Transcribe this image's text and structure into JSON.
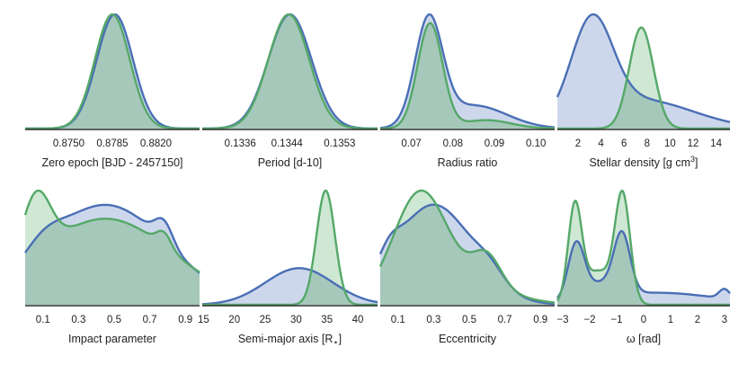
{
  "colors": {
    "blue_line": "#4a6fb5",
    "blue_fill": "#cdd7ec",
    "green_line": "#55a868",
    "green_fill": "#cfe8d4",
    "overlap_fill": "#a6c8bb"
  },
  "legend": "none",
  "chart_data": [
    {
      "type": "area",
      "id": "zero-epoch",
      "xlabel": "Zero epoch [BJD - 2457150]",
      "xlim": [
        0.8715,
        0.8855
      ],
      "ticks": [
        0.875,
        0.8785,
        0.882
      ],
      "tick_labels": [
        "0.8750",
        "0.8785",
        "0.8820"
      ],
      "series": [
        {
          "name": "blue",
          "dist": {
            "type": "gauss",
            "c": 0.8787,
            "w": 0.00145
          }
        },
        {
          "name": "green",
          "dist": {
            "type": "gauss",
            "c": 0.8785,
            "w": 0.0014
          }
        }
      ]
    },
    {
      "type": "area",
      "id": "period",
      "xlabel": "Period [d-10]",
      "xlim": [
        0.13295,
        0.13595
      ],
      "ticks": [
        0.1336,
        0.1344,
        0.1353
      ],
      "tick_labels": [
        "0.1336",
        "0.1344",
        "0.1353"
      ],
      "series": [
        {
          "name": "blue",
          "dist": {
            "type": "gauss",
            "c": 0.13445,
            "w": 0.00037
          }
        },
        {
          "name": "green",
          "dist": {
            "type": "gauss",
            "c": 0.13443,
            "w": 0.00035
          }
        }
      ]
    },
    {
      "type": "area",
      "id": "radius-ratio",
      "xlabel": "Radius ratio",
      "xlim": [
        0.0625,
        0.1045
      ],
      "ticks": [
        0.07,
        0.08,
        0.09,
        0.1
      ],
      "tick_labels": [
        "0.07",
        "0.08",
        "0.09",
        "0.10"
      ],
      "series": [
        {
          "name": "blue",
          "dist": {
            "type": "mix",
            "components": [
              [
                0.0742,
                0.0033,
                1.0
              ],
              [
                0.085,
                0.008,
                0.22
              ]
            ]
          }
        },
        {
          "name": "green",
          "dist": {
            "type": "mix",
            "components": [
              [
                0.0745,
                0.003,
                1.0
              ],
              [
                0.088,
                0.006,
                0.08
              ]
            ]
          }
        }
      ]
    },
    {
      "type": "area",
      "id": "stellar-density",
      "xlabel": "Stellar density [g cm",
      "xlabel_sup": "3",
      "xlabel_close": "]",
      "xlim": [
        0.2,
        15.2
      ],
      "ticks": [
        2,
        4,
        6,
        8,
        10,
        12,
        14
      ],
      "tick_labels": [
        "2",
        "4",
        "6",
        "8",
        "10",
        "12",
        "14"
      ],
      "series": [
        {
          "name": "blue",
          "dist": {
            "type": "mix",
            "components": [
              [
                3.2,
                1.8,
                0.95
              ],
              [
                7.5,
                4.5,
                0.28
              ]
            ]
          }
        },
        {
          "name": "green",
          "dist": {
            "type": "mix",
            "components": [
              [
                7.5,
                1.05,
                1.0
              ]
            ]
          }
        }
      ]
    },
    {
      "type": "area",
      "id": "impact-parameter",
      "xlabel": "Impact parameter",
      "xlim": [
        0.0,
        0.98
      ],
      "ticks": [
        0.1,
        0.3,
        0.5,
        0.7,
        0.9
      ],
      "tick_labels": [
        "0.1",
        "0.3",
        "0.5",
        "0.7",
        "0.9"
      ],
      "series": [
        {
          "name": "blue",
          "dist": {
            "type": "mix",
            "components": [
              [
                0.45,
                0.35,
                0.72
              ],
              [
                0.78,
                0.05,
                0.15
              ],
              [
                0.1,
                0.1,
                0.1
              ]
            ]
          }
        },
        {
          "name": "green",
          "dist": {
            "type": "mix",
            "components": [
              [
                0.45,
                0.38,
                0.62
              ],
              [
                0.06,
                0.08,
                0.45
              ],
              [
                0.78,
                0.04,
                0.1
              ]
            ]
          }
        }
      ]
    },
    {
      "type": "area",
      "id": "semi-major-axis",
      "xlabel": "Semi-major axis [R",
      "xlabel_sub": "⋆",
      "xlabel_close": "]",
      "xlim": [
        14.8,
        43.2
      ],
      "ticks": [
        15,
        20,
        25,
        30,
        35,
        40
      ],
      "tick_labels": [
        "15",
        "20",
        "25",
        "30",
        "35",
        "40"
      ],
      "series": [
        {
          "name": "blue",
          "dist": {
            "type": "mix",
            "components": [
              [
                30.5,
                5.5,
                0.32
              ]
            ]
          }
        },
        {
          "name": "green",
          "dist": {
            "type": "mix",
            "components": [
              [
                34.8,
                1.5,
                1.0
              ]
            ]
          }
        }
      ]
    },
    {
      "type": "area",
      "id": "eccentricity",
      "xlabel": "Eccentricity",
      "xlim": [
        0.0,
        0.98
      ],
      "ticks": [
        0.1,
        0.3,
        0.5,
        0.7,
        0.9
      ],
      "tick_labels": [
        "0.1",
        "0.3",
        "0.5",
        "0.7",
        "0.9"
      ],
      "series": [
        {
          "name": "blue",
          "dist": {
            "type": "mix",
            "components": [
              [
                0.3,
                0.22,
                0.95
              ],
              [
                0.62,
                0.08,
                0.12
              ],
              [
                0.05,
                0.06,
                0.15
              ]
            ]
          }
        },
        {
          "name": "green",
          "dist": {
            "type": "mix",
            "components": [
              [
                0.22,
                0.15,
                0.95
              ],
              [
                0.6,
                0.08,
                0.3
              ],
              [
                0.45,
                0.25,
                0.2
              ]
            ]
          }
        }
      ]
    },
    {
      "type": "area",
      "id": "omega",
      "xlabel": "ω [rad]",
      "xlim": [
        -3.2,
        3.2
      ],
      "ticks": [
        -3,
        -2,
        -1,
        0,
        1,
        2,
        3
      ],
      "tick_labels": [
        "−3",
        "−2",
        "−1",
        "0",
        "1",
        "2",
        "3"
      ],
      "series": [
        {
          "name": "blue",
          "dist": {
            "type": "mix",
            "components": [
              [
                -2.5,
                0.3,
                0.45
              ],
              [
                -0.8,
                0.3,
                0.48
              ],
              [
                -1.6,
                0.6,
                0.12
              ],
              [
                0.5,
                2.2,
                0.1
              ],
              [
                3.0,
                0.2,
                0.08
              ]
            ]
          }
        },
        {
          "name": "green",
          "dist": {
            "type": "mix",
            "components": [
              [
                -2.55,
                0.25,
                0.78
              ],
              [
                -0.78,
                0.28,
                0.88
              ],
              [
                -1.7,
                0.55,
                0.28
              ]
            ]
          }
        }
      ]
    }
  ]
}
